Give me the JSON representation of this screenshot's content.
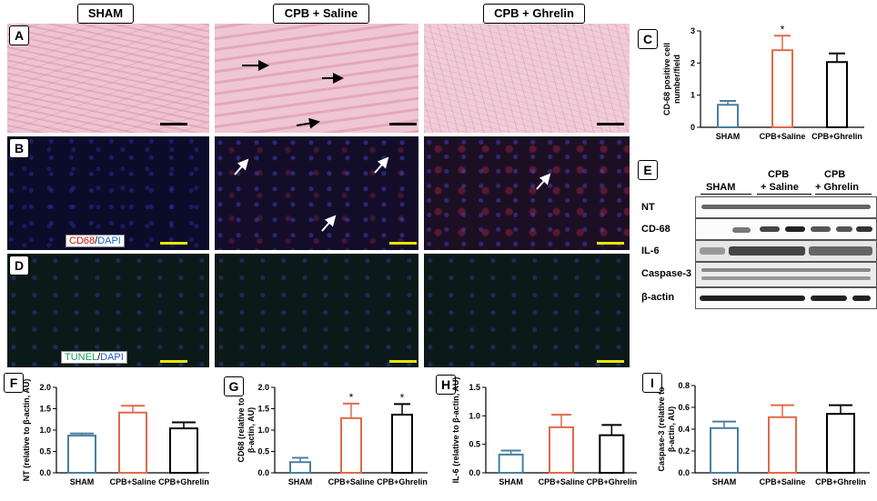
{
  "columns": [
    "SHAM",
    "CPB + Saline",
    "CPB + Ghrelin"
  ],
  "panels": {
    "A": "A",
    "B": "B",
    "C": "C",
    "D": "D",
    "E": "E",
    "F": "F",
    "G": "G",
    "H": "H",
    "I": "I"
  },
  "stains": {
    "b_marker": "CD68",
    "b_sep": "/",
    "b_dapi": "DAPI",
    "d_marker": "TUNEL",
    "d_sep": "/",
    "d_dapi": "DAPI"
  },
  "blot": {
    "groups": [
      "SHAM",
      "CPB\n+ Saline",
      "CPB\n+ Ghrelin"
    ],
    "group_line1": [
      "SHAM",
      "CPB",
      "CPB"
    ],
    "group_line2": [
      "",
      "+ Saline",
      "+ Ghrelin"
    ],
    "rows": [
      "NT",
      "CD-68",
      "IL-6",
      "Caspase-3",
      "β-actin"
    ]
  },
  "colors": {
    "sham": "#4a7fa0",
    "saline": "#e06a4a",
    "ghrelin": "#000000"
  },
  "chart_data": [
    {
      "panel": "C",
      "type": "bar",
      "categories": [
        "SHAM",
        "CPB+Saline",
        "CPB+Ghrelin"
      ],
      "values": [
        0.7,
        2.4,
        2.03
      ],
      "errors": [
        0.12,
        0.45,
        0.27
      ],
      "significance": [
        "",
        "*",
        ""
      ],
      "ylabel": "CD-68 positive cell number/field",
      "ylim": [
        0,
        3
      ],
      "yticks": [
        "0",
        "1",
        "2",
        "3"
      ]
    },
    {
      "panel": "F",
      "type": "bar",
      "categories": [
        "SHAM",
        "CPB+Saline",
        "CPB+Ghrelin"
      ],
      "values": [
        0.87,
        1.41,
        1.04
      ],
      "errors": [
        0.05,
        0.16,
        0.14
      ],
      "significance": [
        "",
        "",
        ""
      ],
      "ylabel": "NT (relative to β-actin, AU)",
      "ylim": [
        0,
        2.0
      ],
      "yticks": [
        "0.0",
        "0.5",
        "1.0",
        "1.5",
        "2.0"
      ]
    },
    {
      "panel": "G",
      "type": "bar",
      "categories": [
        "SHAM",
        "CPB+Saline",
        "CPB+Ghrelin"
      ],
      "values": [
        0.25,
        1.28,
        1.36
      ],
      "errors": [
        0.1,
        0.34,
        0.25
      ],
      "significance": [
        "",
        "*",
        "*"
      ],
      "ylabel": "CD68 (relative to β-actin, AU)",
      "ylim": [
        0,
        2.0
      ],
      "yticks": [
        "0.0",
        "0.5",
        "1.0",
        "1.5",
        "2.0"
      ]
    },
    {
      "panel": "H",
      "type": "bar",
      "categories": [
        "SHAM",
        "CPB+Saline",
        "CPB+Ghrelin"
      ],
      "values": [
        0.32,
        0.8,
        0.66
      ],
      "errors": [
        0.07,
        0.22,
        0.18
      ],
      "significance": [
        "",
        "",
        ""
      ],
      "ylabel": "IL-6 (relative to β-actin, AU)",
      "ylim": [
        0,
        1.5
      ],
      "yticks": [
        "0.0",
        "0.5",
        "1.0",
        "1.5"
      ]
    },
    {
      "panel": "I",
      "type": "bar",
      "categories": [
        "SHAM",
        "CPB+Saline",
        "CPB+Ghrelin"
      ],
      "values": [
        0.41,
        0.51,
        0.54
      ],
      "errors": [
        0.06,
        0.11,
        0.08
      ],
      "significance": [
        "",
        "",
        ""
      ],
      "ylabel": "Caspase-3 (relative to β-actin, AU)",
      "ylim": [
        0,
        0.8
      ],
      "yticks": [
        "0.0",
        "0.2",
        "0.4",
        "0.6",
        "0.8"
      ]
    }
  ]
}
